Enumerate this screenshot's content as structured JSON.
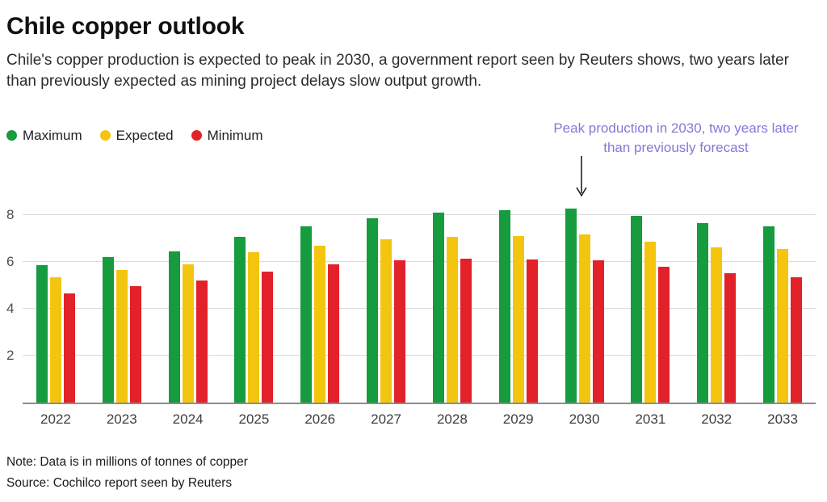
{
  "header": {
    "title": "Chile copper outlook",
    "subtitle": "Chile's copper production is expected to peak in 2030, a government report seen by Reuters shows, two years later than previously expected as mining project delays slow output growth."
  },
  "annotation": {
    "text": "Peak production in 2030, two years later than previously forecast",
    "color": "#8577d9",
    "target_year": "2030"
  },
  "chart_data": {
    "type": "bar",
    "title": "Chile copper outlook",
    "xlabel": "",
    "ylabel": "",
    "unit": "millions of tonnes of copper",
    "categories": [
      "2022",
      "2023",
      "2024",
      "2025",
      "2026",
      "2027",
      "2028",
      "2029",
      "2030",
      "2031",
      "2032",
      "2033"
    ],
    "series": [
      {
        "name": "Maximum",
        "color": "#169b3e",
        "values": [
          5.85,
          6.2,
          6.45,
          7.05,
          7.5,
          7.85,
          8.1,
          8.2,
          8.25,
          7.95,
          7.65,
          7.5
        ]
      },
      {
        "name": "Expected",
        "color": "#f4c50f",
        "values": [
          5.35,
          5.65,
          5.9,
          6.4,
          6.7,
          6.95,
          7.05,
          7.1,
          7.15,
          6.85,
          6.6,
          6.55
        ]
      },
      {
        "name": "Minimum",
        "color": "#e22128",
        "values": [
          4.65,
          4.95,
          5.2,
          5.6,
          5.9,
          6.05,
          6.15,
          6.1,
          6.05,
          5.8,
          5.5,
          5.35
        ]
      }
    ],
    "yticks": [
      2,
      4,
      6,
      8
    ],
    "ylim": [
      0,
      8.6
    ],
    "grid": true,
    "legend_position": "top-left"
  },
  "footer": {
    "note": "Note: Data is in millions of tonnes of copper",
    "source": "Source: Cochilco report seen by Reuters"
  }
}
